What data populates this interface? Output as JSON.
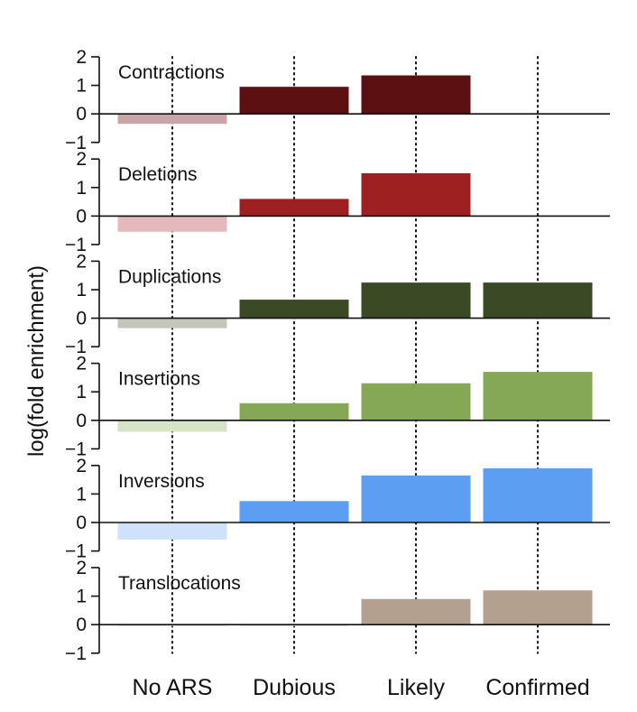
{
  "chart_data": {
    "type": "bar",
    "ylabel": "log(fold enrichment)",
    "categories": [
      "No ARS",
      "Dubious",
      "Likely",
      "Confirmed"
    ],
    "yticks": [
      "2",
      "1",
      "0",
      "−1"
    ],
    "ylim": [
      -1,
      2
    ],
    "grid": "vertical dotted lines at categories",
    "panels": [
      {
        "name": "Contractions",
        "values": [
          -0.35,
          0.95,
          1.35,
          0
        ],
        "colors": [
          "#c9a5a8",
          "#5c1012",
          "#5c1012",
          "#5c1012"
        ]
      },
      {
        "name": "Deletions",
        "values": [
          -0.55,
          0.6,
          1.5,
          0
        ],
        "colors": [
          "#e4b9bb",
          "#9e1f20",
          "#9e1f20",
          "#9e1f20"
        ]
      },
      {
        "name": "Duplications",
        "values": [
          -0.35,
          0.65,
          1.25,
          1.25
        ],
        "colors": [
          "#c3c7ba",
          "#3a4a25",
          "#3a4a25",
          "#3a4a25"
        ]
      },
      {
        "name": "Insertions",
        "values": [
          -0.4,
          0.6,
          1.3,
          1.7
        ],
        "colors": [
          "#d6e3c7",
          "#85a857",
          "#85a857",
          "#85a857"
        ]
      },
      {
        "name": "Inversions",
        "values": [
          -0.6,
          0.75,
          1.65,
          1.9
        ],
        "colors": [
          "#cfe2fb",
          "#5b9ef2",
          "#5b9ef2",
          "#5b9ef2"
        ]
      },
      {
        "name": "Translocations",
        "values": [
          -0.05,
          -0.05,
          0.9,
          1.2
        ],
        "colors": [
          "#e2ddd6",
          "#e2ddd6",
          "#b3a08e",
          "#b3a08e"
        ]
      }
    ]
  }
}
